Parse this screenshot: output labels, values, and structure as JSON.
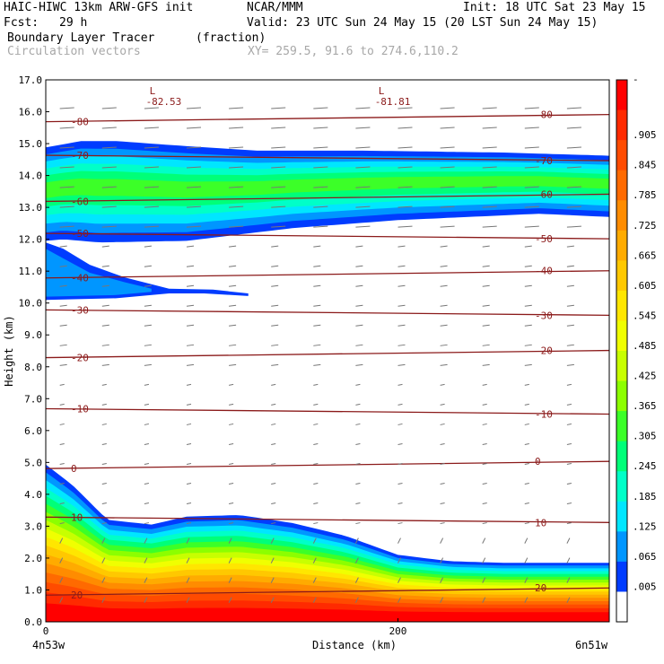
{
  "header": {
    "title": "HAIC-HIWC 13km ARW-GFS init",
    "org": "NCAR/MMM",
    "init": "Init: 18 UTC Sat 23 May 15",
    "fcst_label": "Fcst:",
    "fcst_value": "29 h",
    "valid": "Valid: 23 UTC Sun 24 May 15 (20 LST Sun 24 May 15)",
    "field_name": "Boundary Layer Tracer",
    "field_units": "(fraction)",
    "overlay_name": "Circulation vectors",
    "xy_info": "XY= 259.5, 91.6 to 274.6,110.2"
  },
  "chart_data": {
    "type": "heatmap",
    "xlabel": "Distance (km)",
    "ylabel": "Height (km)",
    "x_ticks": [
      "0",
      "200"
    ],
    "x_tick_values": [
      0,
      200
    ],
    "x_range": [
      0,
      320
    ],
    "x_end_labels": [
      "4n53w",
      "6n51w"
    ],
    "ylim": [
      0,
      17
    ],
    "y_ticks": [
      "0.0",
      "1.0",
      "2.0",
      "3.0",
      "4.0",
      "5.0",
      "6.0",
      "7.0",
      "8.0",
      "9.0",
      "10.0",
      "11.0",
      "12.0",
      "13.0",
      "14.0",
      "15.0",
      "16.0",
      "17.0"
    ],
    "colorbar_labels": [
      "-",
      ".905",
      ".845",
      ".785",
      ".725",
      ".665",
      ".605",
      ".545",
      ".485",
      ".425",
      ".365",
      ".305",
      ".245",
      ".185",
      ".125",
      ".065",
      ".005"
    ],
    "colorbar_colors": [
      "#ff0000",
      "#ff2a00",
      "#ff4b00",
      "#ff6a00",
      "#ff8c00",
      "#ffab00",
      "#ffc800",
      "#ffe600",
      "#f0ff00",
      "#c8ff00",
      "#8cff00",
      "#3cff28",
      "#00ff78",
      "#00ffc8",
      "#00e6ff",
      "#0096ff",
      "#003cff",
      "#ffffff"
    ],
    "upper_layer": {
      "top_km": [
        [
          0,
          14.88
        ],
        [
          20,
          15.08
        ],
        [
          40,
          15.08
        ],
        [
          80,
          14.92
        ],
        [
          120,
          14.78
        ],
        [
          180,
          14.78
        ],
        [
          260,
          14.72
        ],
        [
          320,
          14.62
        ]
      ],
      "bottom_km": [
        [
          0,
          11.95
        ],
        [
          10,
          12.0
        ],
        [
          30,
          11.9
        ],
        [
          80,
          11.95
        ],
        [
          140,
          12.35
        ],
        [
          200,
          12.6
        ],
        [
          280,
          12.8
        ],
        [
          320,
          12.7
        ]
      ],
      "lower_tail_km": {
        "x": [
          0,
          115
        ],
        "top": [
          11.8,
          10.35
        ],
        "bottom": [
          10.1,
          10.25
        ]
      }
    },
    "boundary_layer": {
      "top_km": [
        [
          0,
          4.93
        ],
        [
          15,
          4.3
        ],
        [
          35,
          3.2
        ],
        [
          60,
          3.05
        ],
        [
          80,
          3.3
        ],
        [
          110,
          3.35
        ],
        [
          140,
          3.1
        ],
        [
          170,
          2.7
        ],
        [
          200,
          2.1
        ],
        [
          230,
          1.9
        ],
        [
          260,
          1.85
        ],
        [
          320,
          1.85
        ]
      ]
    },
    "contour_lines": [
      {
        "value": "-80",
        "y_km": 15.8
      },
      {
        "value": "-70",
        "y_km": 14.55
      },
      {
        "value": "-60",
        "y_km": 13.3
      },
      {
        "value": "-50",
        "y_km": 12.1
      },
      {
        "value": "-40",
        "y_km": 10.9
      },
      {
        "value": "-30",
        "y_km": 9.7
      },
      {
        "value": "-20",
        "y_km": 8.4
      },
      {
        "value": "-10",
        "y_km": 6.6
      },
      {
        "value": "0",
        "y_km": 4.92
      },
      {
        "value": "10",
        "y_km": 3.2
      },
      {
        "value": "20",
        "y_km": 0.95
      }
    ],
    "minima_labels": [
      {
        "marker": "L",
        "value": "-82.53",
        "x_km": 65,
        "y_km": 16.5
      },
      {
        "marker": "L",
        "value": "-81.81",
        "x_km": 195,
        "y_km": 16.5
      }
    ]
  }
}
